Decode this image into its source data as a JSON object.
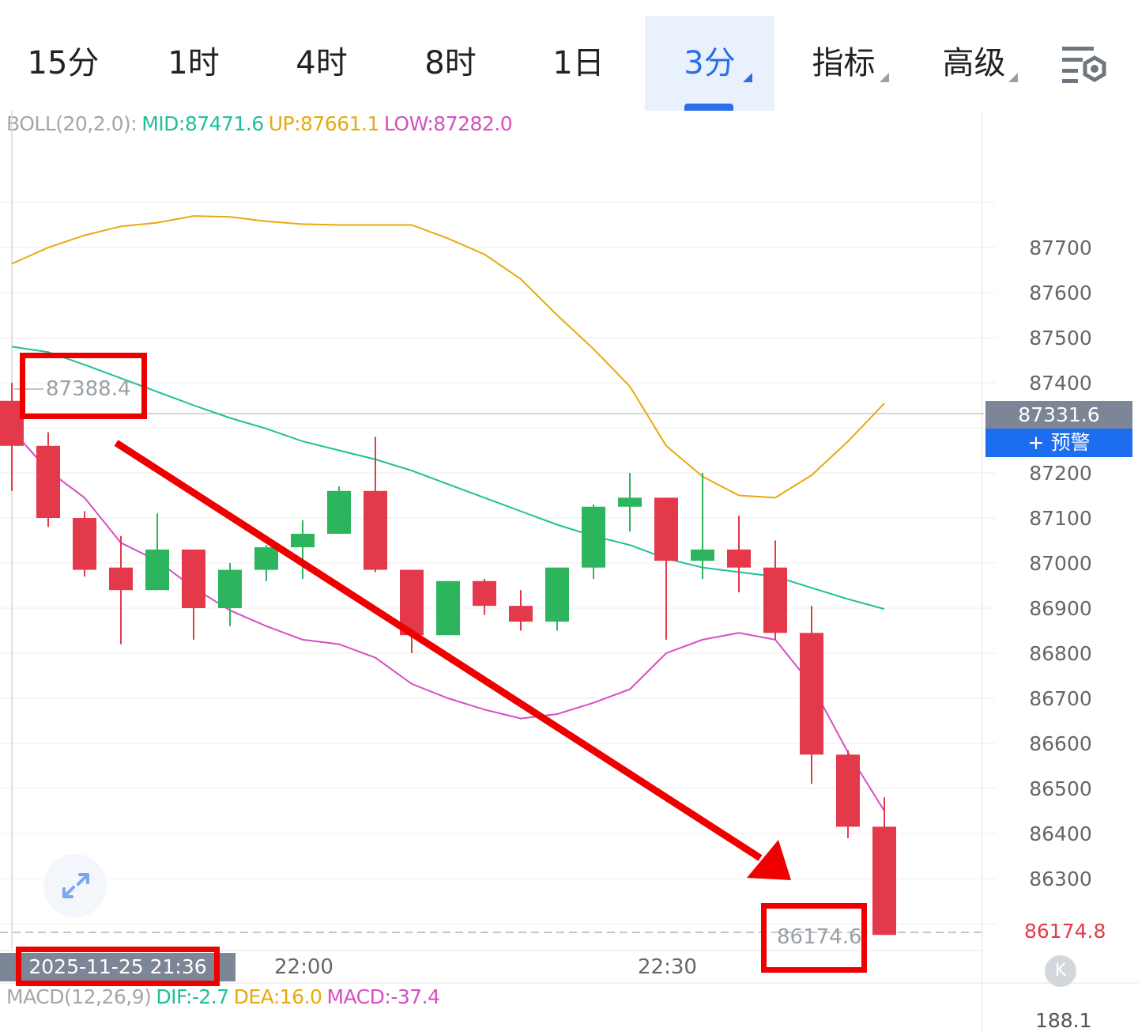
{
  "tabs": [
    {
      "label": "15分",
      "active": false,
      "dropdown": false
    },
    {
      "label": "1时",
      "active": false,
      "dropdown": false
    },
    {
      "label": "4时",
      "active": false,
      "dropdown": false
    },
    {
      "label": "8时",
      "active": false,
      "dropdown": false
    },
    {
      "label": "1日",
      "active": false,
      "dropdown": false
    },
    {
      "label": "3分",
      "active": true,
      "dropdown": true
    },
    {
      "label": "指标",
      "active": false,
      "dropdown": true
    },
    {
      "label": "高级",
      "active": false,
      "dropdown": true
    }
  ],
  "settings_icon": "chart-settings-icon",
  "boll": {
    "name": "BOLL(20,2.0):",
    "mid": "MID:87471.6",
    "up": "UP:87661.1",
    "low": "LOW:87282.0",
    "colors": {
      "name": "#a6a6a6",
      "mid": "#1fbf9b",
      "up": "#e8a90e",
      "low": "#d64fbf"
    }
  },
  "macd": {
    "name": "MACD(12,26,9)",
    "dif": "DIF:-2.7",
    "dea": "DEA:16.0",
    "macd": "MACD:-37.4",
    "scale_value": "188.1"
  },
  "annotations": {
    "high_label": "87388.4",
    "low_label": "86174.6",
    "date_label": "2025-11-25 21:36",
    "box_color": "#ee0000",
    "arrow_color": "#ee0000"
  },
  "price_tag": "87331.6",
  "alert_button": "+ 预警",
  "last_price": "86174.8",
  "x_ticks": [
    "22:00",
    "22:30"
  ],
  "colors": {
    "up": "#2db55d",
    "down": "#e3394a",
    "grid": "#eeeeee",
    "accent": "#2a6ee8"
  },
  "chart_data": {
    "type": "candlestick",
    "interval": "3分",
    "y_ticks": [
      87700,
      87600,
      87500,
      87400,
      87200,
      87100,
      87000,
      86900,
      86800,
      86700,
      86600,
      86500,
      86400,
      86300
    ],
    "ylim": [
      86130,
      87830
    ],
    "x_labels": [
      "22:00",
      "22:30"
    ],
    "candles": [
      {
        "o": 87360,
        "h": 87400,
        "l": 87160,
        "c": 87260
      },
      {
        "o": 87260,
        "h": 87290,
        "l": 87080,
        "c": 87100
      },
      {
        "o": 87100,
        "h": 87115,
        "l": 86970,
        "c": 86985
      },
      {
        "o": 86990,
        "h": 87060,
        "l": 86820,
        "c": 86940
      },
      {
        "o": 86940,
        "h": 87110,
        "l": 86940,
        "c": 87030
      },
      {
        "o": 87030,
        "h": 87030,
        "l": 86830,
        "c": 86900
      },
      {
        "o": 86900,
        "h": 87000,
        "l": 86860,
        "c": 86985
      },
      {
        "o": 86985,
        "h": 87040,
        "l": 86960,
        "c": 87035
      },
      {
        "o": 87035,
        "h": 87095,
        "l": 86965,
        "c": 87065
      },
      {
        "o": 87065,
        "h": 87170,
        "l": 87065,
        "c": 87160
      },
      {
        "o": 87160,
        "h": 87280,
        "l": 86980,
        "c": 86985
      },
      {
        "o": 86985,
        "h": 86985,
        "l": 86800,
        "c": 86840
      },
      {
        "o": 86840,
        "h": 86950,
        "l": 86840,
        "c": 86960
      },
      {
        "o": 86960,
        "h": 86965,
        "l": 86885,
        "c": 86905
      },
      {
        "o": 86905,
        "h": 86940,
        "l": 86850,
        "c": 86870
      },
      {
        "o": 86870,
        "h": 86990,
        "l": 86850,
        "c": 86990
      },
      {
        "o": 86990,
        "h": 87130,
        "l": 86965,
        "c": 87125
      },
      {
        "o": 87125,
        "h": 87200,
        "l": 87070,
        "c": 87145
      },
      {
        "o": 87145,
        "h": 87145,
        "l": 86830,
        "c": 87005
      },
      {
        "o": 87005,
        "h": 87200,
        "l": 86965,
        "c": 87030
      },
      {
        "o": 87030,
        "h": 87105,
        "l": 86935,
        "c": 86990
      },
      {
        "o": 86990,
        "h": 87050,
        "l": 86830,
        "c": 86845
      },
      {
        "o": 86845,
        "h": 86905,
        "l": 86510,
        "c": 86575
      },
      {
        "o": 86575,
        "h": 86585,
        "l": 86390,
        "c": 86415
      },
      {
        "o": 86415,
        "h": 86480,
        "l": 86175,
        "c": 86175
      }
    ],
    "boll_up": [
      87664,
      87700,
      87727,
      87747,
      87755,
      87770,
      87768,
      87758,
      87752,
      87750,
      87750,
      87750,
      87720,
      87685,
      87630,
      87550,
      87475,
      87392,
      87260,
      87192,
      87150,
      87145,
      87195,
      87270,
      87354
    ],
    "boll_mid": [
      87480,
      87468,
      87440,
      87410,
      87380,
      87350,
      87322,
      87298,
      87270,
      87250,
      87230,
      87205,
      87175,
      87145,
      87115,
      87085,
      87060,
      87040,
      87010,
      86990,
      86980,
      86970,
      86945,
      86920,
      86898
    ],
    "boll_low": [
      87296,
      87205,
      87145,
      87045,
      87005,
      86945,
      86895,
      86860,
      86830,
      86820,
      86790,
      86732,
      86700,
      86675,
      86655,
      86665,
      86690,
      86720,
      86800,
      86830,
      86845,
      86830,
      86730,
      86580,
      86450
    ]
  }
}
